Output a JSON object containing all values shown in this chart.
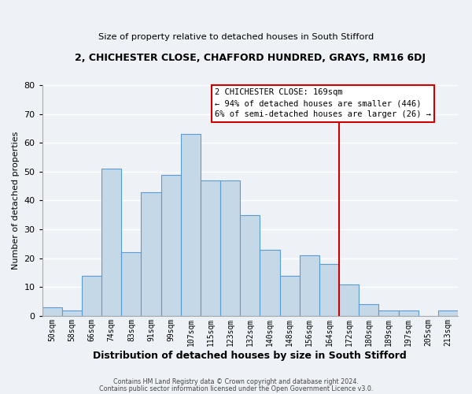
{
  "title1": "2, CHICHESTER CLOSE, CHAFFORD HUNDRED, GRAYS, RM16 6DJ",
  "title2": "Size of property relative to detached houses in South Stifford",
  "xlabel": "Distribution of detached houses by size in South Stifford",
  "ylabel": "Number of detached properties",
  "bar_labels": [
    "50sqm",
    "58sqm",
    "66sqm",
    "74sqm",
    "83sqm",
    "91sqm",
    "99sqm",
    "107sqm",
    "115sqm",
    "123sqm",
    "132sqm",
    "140sqm",
    "148sqm",
    "156sqm",
    "164sqm",
    "172sqm",
    "180sqm",
    "189sqm",
    "197sqm",
    "205sqm",
    "213sqm"
  ],
  "bar_values": [
    3,
    2,
    14,
    51,
    22,
    43,
    49,
    63,
    47,
    47,
    35,
    23,
    14,
    21,
    18,
    11,
    4,
    2,
    2,
    0,
    2
  ],
  "bar_color": "#c5d8e8",
  "bar_edge_color": "#5b9bd5",
  "ylim": [
    0,
    80
  ],
  "yticks": [
    0,
    10,
    20,
    30,
    40,
    50,
    60,
    70,
    80
  ],
  "vline_color": "#cc0000",
  "annotation_title": "2 CHICHESTER CLOSE: 169sqm",
  "annotation_line1": "← 94% of detached houses are smaller (446)",
  "annotation_line2": "6% of semi-detached houses are larger (26) →",
  "annotation_box_color": "#cc0000",
  "footer1": "Contains HM Land Registry data © Crown copyright and database right 2024.",
  "footer2": "Contains public sector information licensed under the Open Government Licence v3.0.",
  "background_color": "#eef2f7",
  "grid_color": "#ffffff"
}
